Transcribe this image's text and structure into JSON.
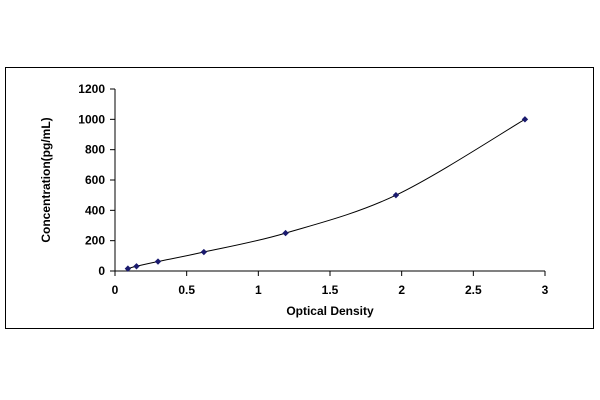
{
  "chart_data": {
    "type": "scatter",
    "title": "",
    "xlabel": "Optical Density",
    "ylabel": "Concentration(pg/mL)",
    "xlim": [
      0,
      3
    ],
    "ylim": [
      0,
      1200
    ],
    "x_ticks": [
      "0",
      "0.5",
      "1",
      "1.5",
      "2",
      "2.5",
      "3"
    ],
    "y_ticks": [
      "0",
      "200",
      "400",
      "600",
      "800",
      "1000",
      "1200"
    ],
    "grid": false,
    "legend": "none",
    "series": [
      {
        "points": [
          {
            "x": 0.09,
            "y": 15.6
          },
          {
            "x": 0.15,
            "y": 31.2
          },
          {
            "x": 0.3,
            "y": 62.5
          },
          {
            "x": 0.62,
            "y": 125
          },
          {
            "x": 1.19,
            "y": 250
          },
          {
            "x": 1.96,
            "y": 500
          },
          {
            "x": 2.86,
            "y": 1000
          }
        ],
        "color": "#1a1a6e",
        "trendline": "polynomial"
      }
    ]
  }
}
